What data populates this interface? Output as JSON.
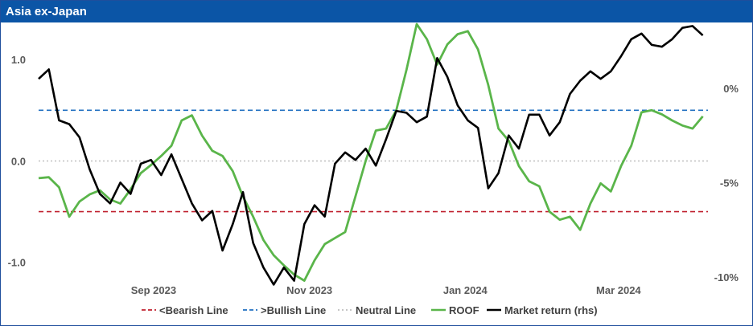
{
  "title": "Asia ex-Japan",
  "chart_data": {
    "type": "line",
    "y_left": {
      "ylim": [
        -1.2,
        1.35
      ],
      "ticks": [
        1.0,
        0.0,
        -1.0
      ],
      "tick_labels": [
        "1.0",
        "0.0",
        "-1.0"
      ]
    },
    "y_right": {
      "ylim": [
        -10.3,
        3.4
      ],
      "ticks": [
        0,
        -5,
        -10
      ],
      "tick_labels": [
        "0%",
        "-5%",
        "-10%"
      ]
    },
    "x_range": [
      "2023-08-01",
      "2024-04-19"
    ],
    "x_ticks": [
      {
        "date": "2023-09-15",
        "label": "Sep 2023"
      },
      {
        "date": "2023-11-15",
        "label": "Nov 2023"
      },
      {
        "date": "2024-01-15",
        "label": "Jan 2024"
      },
      {
        "date": "2024-03-15",
        "label": "Mar 2024"
      }
    ],
    "colors": {
      "bearish": "#c0202f",
      "bullish": "#1f6fc0",
      "neutral": "#bfbfbf",
      "roof": "#5ab54a",
      "market": "#000000"
    },
    "legend": [
      {
        "key": "bearish",
        "label": "<Bearish Line",
        "style": "dashed"
      },
      {
        "key": "bullish",
        "label": ">Bullish Line",
        "style": "dashed"
      },
      {
        "key": "neutral",
        "label": "Neutral Line",
        "style": "dotted"
      },
      {
        "key": "roof",
        "label": "ROOF",
        "style": "solid"
      },
      {
        "key": "market",
        "label": "Market return (rhs)",
        "style": "solid"
      }
    ],
    "reference_lines": {
      "bearish": -0.5,
      "bullish": 0.5,
      "neutral": 0.0
    },
    "series": [
      {
        "name": "ROOF",
        "axis": "left",
        "x": [
          "2023-08-01",
          "2023-08-05",
          "2023-08-09",
          "2023-08-13",
          "2023-08-17",
          "2023-08-21",
          "2023-08-25",
          "2023-08-29",
          "2023-09-02",
          "2023-09-06",
          "2023-09-10",
          "2023-09-14",
          "2023-09-18",
          "2023-09-22",
          "2023-09-26",
          "2023-09-30",
          "2023-10-04",
          "2023-10-08",
          "2023-10-12",
          "2023-10-16",
          "2023-10-20",
          "2023-10-24",
          "2023-10-28",
          "2023-11-01",
          "2023-11-05",
          "2023-11-09",
          "2023-11-13",
          "2023-11-17",
          "2023-11-21",
          "2023-11-25",
          "2023-11-29",
          "2023-12-03",
          "2023-12-07",
          "2023-12-11",
          "2023-12-15",
          "2023-12-19",
          "2023-12-23",
          "2023-12-27",
          "2023-12-31",
          "2024-01-04",
          "2024-01-08",
          "2024-01-12",
          "2024-01-16",
          "2024-01-20",
          "2024-01-24",
          "2024-01-28",
          "2024-02-01",
          "2024-02-05",
          "2024-02-09",
          "2024-02-13",
          "2024-02-17",
          "2024-02-21",
          "2024-02-25",
          "2024-02-29",
          "2024-03-04",
          "2024-03-08",
          "2024-03-12",
          "2024-03-16",
          "2024-03-20",
          "2024-03-24",
          "2024-03-28",
          "2024-04-01",
          "2024-04-05",
          "2024-04-09",
          "2024-04-13",
          "2024-04-17"
        ],
        "values": [
          -0.17,
          -0.16,
          -0.26,
          -0.55,
          -0.4,
          -0.33,
          -0.29,
          -0.38,
          -0.42,
          -0.28,
          -0.12,
          -0.04,
          0.05,
          0.15,
          0.4,
          0.45,
          0.25,
          0.1,
          0.05,
          -0.1,
          -0.35,
          -0.55,
          -0.78,
          -0.93,
          -1.03,
          -1.12,
          -1.18,
          -0.98,
          -0.82,
          -0.76,
          -0.7,
          -0.35,
          0.0,
          0.3,
          0.32,
          0.5,
          0.9,
          1.35,
          1.2,
          0.95,
          1.15,
          1.25,
          1.28,
          1.1,
          0.75,
          0.32,
          0.2,
          -0.05,
          -0.2,
          -0.25,
          -0.5,
          -0.58,
          -0.55,
          -0.68,
          -0.42,
          -0.22,
          -0.3,
          -0.05,
          0.15,
          0.48,
          0.5,
          0.46,
          0.4,
          0.35,
          0.32,
          0.44
        ]
      },
      {
        "name": "Market return (rhs)",
        "axis": "right",
        "x": [
          "2023-08-01",
          "2023-08-05",
          "2023-08-09",
          "2023-08-13",
          "2023-08-17",
          "2023-08-21",
          "2023-08-25",
          "2023-08-29",
          "2023-09-02",
          "2023-09-06",
          "2023-09-10",
          "2023-09-14",
          "2023-09-18",
          "2023-09-22",
          "2023-09-26",
          "2023-09-30",
          "2023-10-04",
          "2023-10-08",
          "2023-10-12",
          "2023-10-16",
          "2023-10-20",
          "2023-10-24",
          "2023-10-28",
          "2023-11-01",
          "2023-11-05",
          "2023-11-09",
          "2023-11-13",
          "2023-11-17",
          "2023-11-21",
          "2023-11-25",
          "2023-11-29",
          "2023-12-03",
          "2023-12-07",
          "2023-12-11",
          "2023-12-15",
          "2023-12-19",
          "2023-12-23",
          "2023-12-27",
          "2023-12-31",
          "2024-01-04",
          "2024-01-08",
          "2024-01-12",
          "2024-01-16",
          "2024-01-20",
          "2024-01-24",
          "2024-01-28",
          "2024-02-01",
          "2024-02-05",
          "2024-02-09",
          "2024-02-13",
          "2024-02-17",
          "2024-02-21",
          "2024-02-25",
          "2024-02-29",
          "2024-03-04",
          "2024-03-08",
          "2024-03-12",
          "2024-03-16",
          "2024-03-20",
          "2024-03-24",
          "2024-03-28",
          "2024-04-01",
          "2024-04-05",
          "2024-04-09",
          "2024-04-13",
          "2024-04-17"
        ],
        "values": [
          0.5,
          1.0,
          -1.7,
          -1.9,
          -2.6,
          -4.3,
          -5.6,
          -6.1,
          -5.0,
          -5.6,
          -4.0,
          -3.8,
          -4.6,
          -3.5,
          -4.8,
          -6.1,
          -7.0,
          -6.5,
          -8.6,
          -7.2,
          -5.5,
          -8.2,
          -9.5,
          -10.4,
          -9.5,
          -10.2,
          -7.2,
          -6.2,
          -6.8,
          -4.0,
          -3.4,
          -3.8,
          -3.2,
          -4.1,
          -2.7,
          -1.2,
          -1.3,
          -1.8,
          -1.5,
          1.6,
          0.6,
          -0.9,
          -1.7,
          -2.1,
          -5.3,
          -4.5,
          -2.5,
          -3.2,
          -1.4,
          -1.4,
          -2.5,
          -1.8,
          -0.3,
          0.4,
          0.9,
          0.5,
          0.9,
          1.7,
          2.6,
          2.9,
          2.3,
          2.2,
          2.6,
          3.2,
          3.3,
          2.8
        ]
      }
    ]
  }
}
